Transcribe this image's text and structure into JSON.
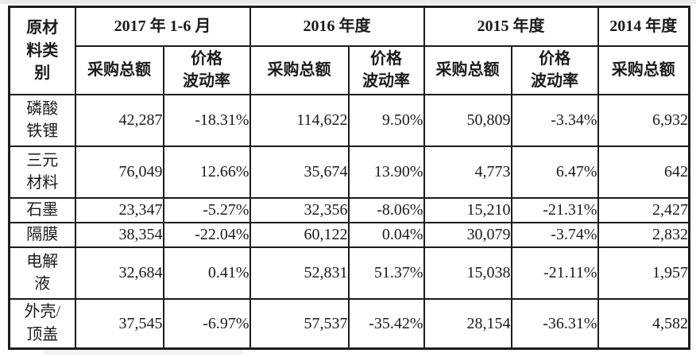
{
  "table": {
    "corner_label": "原材\n料类\n别",
    "periods": [
      {
        "label": "2017 年 1-6 月"
      },
      {
        "label": "2016 年度"
      },
      {
        "label": "2015 年度"
      },
      {
        "label": "2014 年度"
      }
    ],
    "sub_headers": {
      "purchase_total": "采购总额",
      "price_volatility": "价格\n波动率"
    },
    "rows": [
      {
        "label": "磷酸\n铁锂",
        "values": [
          "42,287",
          "-18.31%",
          "114,622",
          "9.50%",
          "50,809",
          "-3.34%",
          "6,932"
        ]
      },
      {
        "label": "三元\n材料",
        "values": [
          "76,049",
          "12.66%",
          "35,674",
          "13.90%",
          "4,773",
          "6.47%",
          "642"
        ]
      },
      {
        "label": "石墨",
        "values": [
          "23,347",
          "-5.27%",
          "32,356",
          "-8.06%",
          "15,210",
          "-21.31%",
          "2,427"
        ]
      },
      {
        "label": "隔膜",
        "values": [
          "38,354",
          "-22.04%",
          "60,122",
          "0.04%",
          "30,079",
          "-3.74%",
          "2,832"
        ]
      },
      {
        "label": "电解\n液",
        "values": [
          "32,684",
          "0.41%",
          "52,831",
          "51.37%",
          "15,038",
          "-21.11%",
          "1,957"
        ]
      },
      {
        "label": "外壳/\n顶盖",
        "values": [
          "37,545",
          "-6.97%",
          "57,537",
          "-35.42%",
          "28,154",
          "-36.31%",
          "4,582"
        ]
      }
    ]
  }
}
